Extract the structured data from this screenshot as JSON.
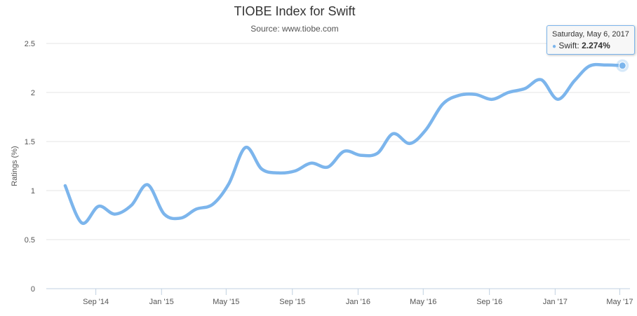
{
  "chart_data": {
    "type": "line",
    "title": "TIOBE Index for Swift",
    "subtitle": "Source: www.tiobe.com",
    "xlabel": "",
    "ylabel": "Ratings (%)",
    "ylim": [
      0,
      2.5
    ],
    "yticks": [
      "0",
      "0.5",
      "1",
      "1.5",
      "2",
      "2.5"
    ],
    "xlim": [
      "2014-06-01",
      "2017-05-20"
    ],
    "xticks": [
      {
        "date": "2014-09-01",
        "label": "Sep '14"
      },
      {
        "date": "2015-01-01",
        "label": "Jan '15"
      },
      {
        "date": "2015-05-01",
        "label": "May '15"
      },
      {
        "date": "2015-09-01",
        "label": "Sep '15"
      },
      {
        "date": "2016-01-01",
        "label": "Jan '16"
      },
      {
        "date": "2016-05-01",
        "label": "May '16"
      },
      {
        "date": "2016-09-01",
        "label": "Sep '16"
      },
      {
        "date": "2017-01-01",
        "label": "Jan '17"
      },
      {
        "date": "2017-05-01",
        "label": "May '17"
      }
    ],
    "grid": "horizontal",
    "color": "#7cb5ec",
    "series": [
      {
        "name": "Swift",
        "x": [
          "2014-07-06",
          "2014-08-06",
          "2014-09-06",
          "2014-10-06",
          "2014-11-06",
          "2014-12-06",
          "2015-01-06",
          "2015-02-06",
          "2015-03-06",
          "2015-04-06",
          "2015-05-06",
          "2015-06-06",
          "2015-07-06",
          "2015-08-06",
          "2015-09-06",
          "2015-10-06",
          "2015-11-06",
          "2015-12-06",
          "2016-01-06",
          "2016-02-06",
          "2016-03-06",
          "2016-04-06",
          "2016-05-06",
          "2016-06-06",
          "2016-07-06",
          "2016-08-06",
          "2016-09-06",
          "2016-10-06",
          "2016-11-06",
          "2016-12-06",
          "2017-01-06",
          "2017-02-06",
          "2017-03-06",
          "2017-04-06",
          "2017-05-06"
        ],
        "values": [
          1.05,
          0.67,
          0.84,
          0.76,
          0.85,
          1.06,
          0.76,
          0.72,
          0.81,
          0.86,
          1.07,
          1.44,
          1.22,
          1.18,
          1.2,
          1.28,
          1.24,
          1.4,
          1.36,
          1.38,
          1.58,
          1.48,
          1.62,
          1.88,
          1.97,
          1.98,
          1.93,
          2.0,
          2.04,
          2.13,
          1.93,
          2.12,
          2.27,
          2.28,
          2.274
        ]
      }
    ]
  },
  "tooltip": {
    "date": "Saturday, May 6, 2017",
    "series_name": "Swift",
    "separator": ": ",
    "value": "2.274%"
  }
}
